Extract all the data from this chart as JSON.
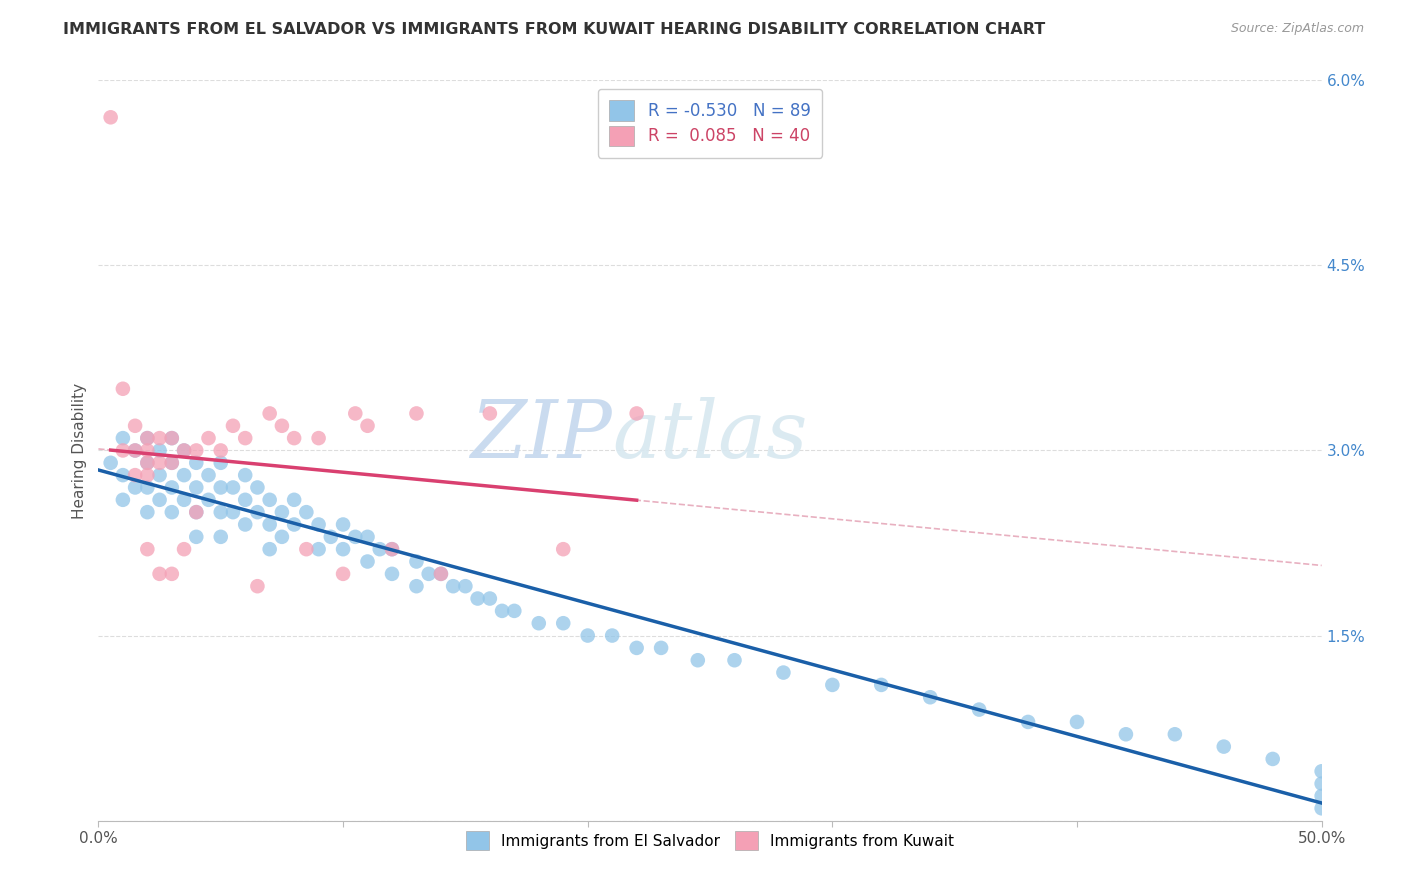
{
  "title": "IMMIGRANTS FROM EL SALVADOR VS IMMIGRANTS FROM KUWAIT HEARING DISABILITY CORRELATION CHART",
  "source": "Source: ZipAtlas.com",
  "ylabel": "Hearing Disability",
  "xlim": [
    0.0,
    0.5
  ],
  "ylim": [
    0.0,
    0.06
  ],
  "xticks": [
    0.0,
    0.1,
    0.2,
    0.3,
    0.4,
    0.5
  ],
  "xticklabels": [
    "0.0%",
    "",
    "",
    "",
    "",
    "50.0%"
  ],
  "yticks": [
    0.0,
    0.015,
    0.03,
    0.045,
    0.06
  ],
  "yticklabels": [
    "",
    "1.5%",
    "3.0%",
    "4.5%",
    "6.0%"
  ],
  "legend_R1": "-0.530",
  "legend_N1": "89",
  "legend_R2": "0.085",
  "legend_N2": "40",
  "blue_color": "#92C5E8",
  "pink_color": "#F4A0B5",
  "blue_line_color": "#1A5FA8",
  "pink_line_color": "#D94070",
  "pink_dash_color": "#E8B0C0",
  "watermark_color": "#D8E8F5",
  "background_color": "#FFFFFF",
  "grid_color": "#DDDDDD",
  "title_color": "#333333",
  "blue_scatter_x": [
    0.005,
    0.01,
    0.01,
    0.01,
    0.015,
    0.015,
    0.02,
    0.02,
    0.02,
    0.02,
    0.025,
    0.025,
    0.025,
    0.03,
    0.03,
    0.03,
    0.03,
    0.035,
    0.035,
    0.035,
    0.04,
    0.04,
    0.04,
    0.04,
    0.045,
    0.045,
    0.05,
    0.05,
    0.05,
    0.05,
    0.055,
    0.055,
    0.06,
    0.06,
    0.06,
    0.065,
    0.065,
    0.07,
    0.07,
    0.07,
    0.075,
    0.075,
    0.08,
    0.08,
    0.085,
    0.09,
    0.09,
    0.095,
    0.1,
    0.1,
    0.105,
    0.11,
    0.11,
    0.115,
    0.12,
    0.12,
    0.13,
    0.13,
    0.135,
    0.14,
    0.145,
    0.15,
    0.155,
    0.16,
    0.165,
    0.17,
    0.18,
    0.19,
    0.2,
    0.21,
    0.22,
    0.23,
    0.245,
    0.26,
    0.28,
    0.3,
    0.32,
    0.34,
    0.36,
    0.38,
    0.4,
    0.42,
    0.44,
    0.46,
    0.48,
    0.5,
    0.5,
    0.5,
    0.5
  ],
  "blue_scatter_y": [
    0.029,
    0.031,
    0.028,
    0.026,
    0.03,
    0.027,
    0.031,
    0.029,
    0.027,
    0.025,
    0.03,
    0.028,
    0.026,
    0.031,
    0.029,
    0.027,
    0.025,
    0.03,
    0.028,
    0.026,
    0.029,
    0.027,
    0.025,
    0.023,
    0.028,
    0.026,
    0.029,
    0.027,
    0.025,
    0.023,
    0.027,
    0.025,
    0.028,
    0.026,
    0.024,
    0.027,
    0.025,
    0.026,
    0.024,
    0.022,
    0.025,
    0.023,
    0.026,
    0.024,
    0.025,
    0.024,
    0.022,
    0.023,
    0.024,
    0.022,
    0.023,
    0.023,
    0.021,
    0.022,
    0.022,
    0.02,
    0.021,
    0.019,
    0.02,
    0.02,
    0.019,
    0.019,
    0.018,
    0.018,
    0.017,
    0.017,
    0.016,
    0.016,
    0.015,
    0.015,
    0.014,
    0.014,
    0.013,
    0.013,
    0.012,
    0.011,
    0.011,
    0.01,
    0.009,
    0.008,
    0.008,
    0.007,
    0.007,
    0.006,
    0.005,
    0.004,
    0.003,
    0.002,
    0.001
  ],
  "pink_scatter_x": [
    0.005,
    0.01,
    0.01,
    0.015,
    0.015,
    0.015,
    0.02,
    0.02,
    0.02,
    0.02,
    0.02,
    0.025,
    0.025,
    0.025,
    0.03,
    0.03,
    0.03,
    0.035,
    0.035,
    0.04,
    0.04,
    0.045,
    0.05,
    0.055,
    0.06,
    0.065,
    0.07,
    0.075,
    0.08,
    0.085,
    0.09,
    0.1,
    0.105,
    0.11,
    0.12,
    0.13,
    0.14,
    0.16,
    0.19,
    0.22
  ],
  "pink_scatter_y": [
    0.057,
    0.035,
    0.03,
    0.032,
    0.03,
    0.028,
    0.031,
    0.03,
    0.029,
    0.028,
    0.022,
    0.031,
    0.029,
    0.02,
    0.031,
    0.029,
    0.02,
    0.03,
    0.022,
    0.03,
    0.025,
    0.031,
    0.03,
    0.032,
    0.031,
    0.019,
    0.033,
    0.032,
    0.031,
    0.022,
    0.031,
    0.02,
    0.033,
    0.032,
    0.022,
    0.033,
    0.02,
    0.033,
    0.022,
    0.033
  ]
}
